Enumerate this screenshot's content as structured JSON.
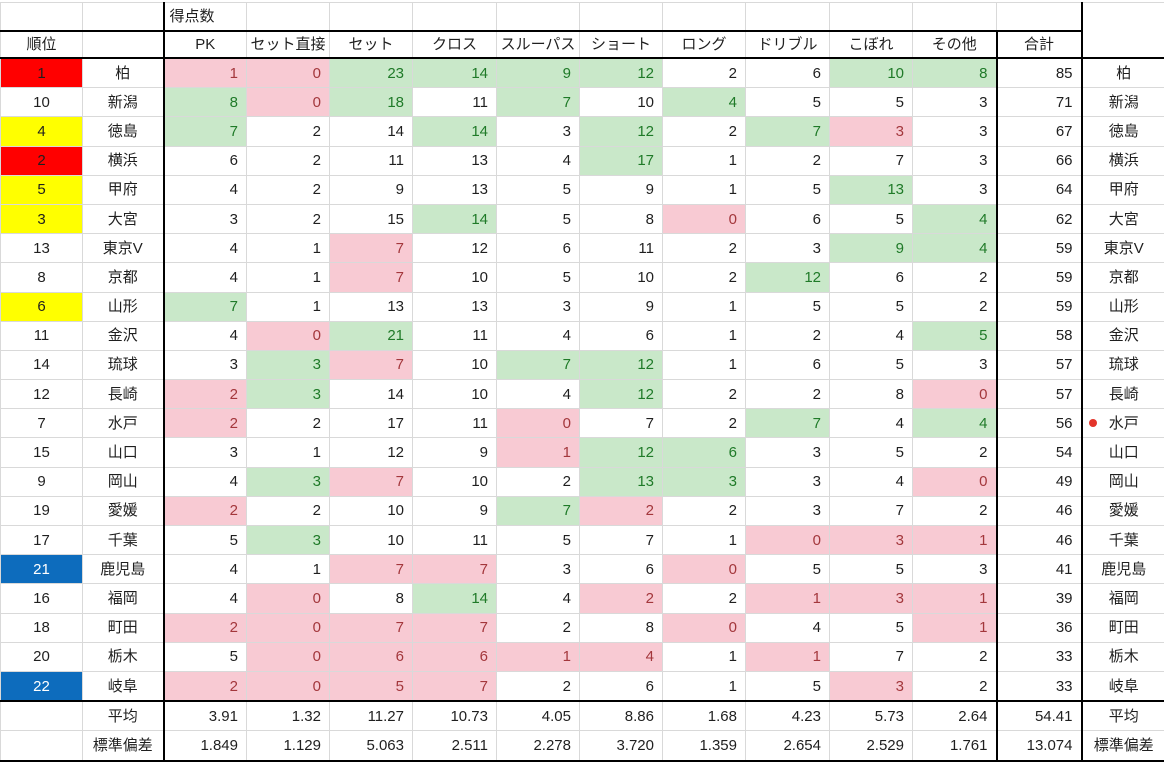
{
  "header": {
    "score_label": "得点数",
    "rank_label": "順位",
    "columns": [
      "PK",
      "セット直接",
      "セット",
      "クロス",
      "スルーパス",
      "ショート",
      "ロング",
      "ドリブル",
      "こぼれ",
      "その他",
      "合計"
    ]
  },
  "colors": {
    "rank_red": "#ff0000",
    "rank_yellow": "#ffff00",
    "rank_blue": "#0d6cbd",
    "good_bg": "#c9e8c9",
    "good_text": "#1f7a28",
    "bad_bg": "#f8cad3",
    "bad_text": "#a3373c",
    "dot": "#e3342a"
  },
  "rows": [
    {
      "rank": "1",
      "rank_color": "red",
      "team": "柏",
      "values": [
        1,
        0,
        23,
        14,
        9,
        12,
        2,
        6,
        10,
        8
      ],
      "styles": [
        "p",
        "p",
        "g",
        "g",
        "g",
        "g",
        "",
        "",
        "g",
        "g"
      ],
      "total": "85",
      "dot": false
    },
    {
      "rank": "10",
      "rank_color": "",
      "team": "新潟",
      "values": [
        8,
        0,
        18,
        11,
        7,
        10,
        4,
        5,
        5,
        3
      ],
      "styles": [
        "g",
        "p",
        "g",
        "",
        "g",
        "",
        "g",
        "",
        "",
        ""
      ],
      "total": "71",
      "dot": false
    },
    {
      "rank": "4",
      "rank_color": "yellow",
      "team": "徳島",
      "values": [
        7,
        2,
        14,
        14,
        3,
        12,
        2,
        7,
        3,
        3
      ],
      "styles": [
        "g",
        "",
        "",
        "g",
        "",
        "g",
        "",
        "g",
        "p",
        ""
      ],
      "total": "67",
      "dot": false
    },
    {
      "rank": "2",
      "rank_color": "red",
      "team": "横浜",
      "values": [
        6,
        2,
        11,
        13,
        4,
        17,
        1,
        2,
        7,
        3
      ],
      "styles": [
        "",
        "",
        "",
        "",
        "",
        "g",
        "",
        "",
        "",
        ""
      ],
      "total": "66",
      "dot": false
    },
    {
      "rank": "5",
      "rank_color": "yellow",
      "team": "甲府",
      "values": [
        4,
        2,
        9,
        13,
        5,
        9,
        1,
        5,
        13,
        3
      ],
      "styles": [
        "",
        "",
        "",
        "",
        "",
        "",
        "",
        "",
        "g",
        ""
      ],
      "total": "64",
      "dot": false
    },
    {
      "rank": "3",
      "rank_color": "yellow",
      "team": "大宮",
      "values": [
        3,
        2,
        15,
        14,
        5,
        8,
        0,
        6,
        5,
        4
      ],
      "styles": [
        "",
        "",
        "",
        "g",
        "",
        "",
        "p",
        "",
        "",
        "g"
      ],
      "total": "62",
      "dot": false
    },
    {
      "rank": "13",
      "rank_color": "",
      "team": "東京V",
      "values": [
        4,
        1,
        7,
        12,
        6,
        11,
        2,
        3,
        9,
        4
      ],
      "styles": [
        "",
        "",
        "p",
        "",
        "",
        "",
        "",
        "",
        "g",
        "g"
      ],
      "total": "59",
      "dot": false
    },
    {
      "rank": "8",
      "rank_color": "",
      "team": "京都",
      "values": [
        4,
        1,
        7,
        10,
        5,
        10,
        2,
        12,
        6,
        2
      ],
      "styles": [
        "",
        "",
        "p",
        "",
        "",
        "",
        "",
        "g",
        "",
        ""
      ],
      "total": "59",
      "dot": false
    },
    {
      "rank": "6",
      "rank_color": "yellow",
      "team": "山形",
      "values": [
        7,
        1,
        13,
        13,
        3,
        9,
        1,
        5,
        5,
        2
      ],
      "styles": [
        "g",
        "",
        "",
        "",
        "",
        "",
        "",
        "",
        "",
        ""
      ],
      "total": "59",
      "dot": false
    },
    {
      "rank": "11",
      "rank_color": "",
      "team": "金沢",
      "values": [
        4,
        0,
        21,
        11,
        4,
        6,
        1,
        2,
        4,
        5
      ],
      "styles": [
        "",
        "p",
        "g",
        "",
        "",
        "",
        "",
        "",
        "",
        "g"
      ],
      "total": "58",
      "dot": false
    },
    {
      "rank": "14",
      "rank_color": "",
      "team": "琉球",
      "values": [
        3,
        3,
        7,
        10,
        7,
        12,
        1,
        6,
        5,
        3
      ],
      "styles": [
        "",
        "g",
        "p",
        "",
        "g",
        "g",
        "",
        "",
        "",
        ""
      ],
      "total": "57",
      "dot": false
    },
    {
      "rank": "12",
      "rank_color": "",
      "team": "長崎",
      "values": [
        2,
        3,
        14,
        10,
        4,
        12,
        2,
        2,
        8,
        0
      ],
      "styles": [
        "p",
        "g",
        "",
        "",
        "",
        "g",
        "",
        "",
        "",
        "p"
      ],
      "total": "57",
      "dot": false
    },
    {
      "rank": "7",
      "rank_color": "",
      "team": "水戸",
      "values": [
        2,
        2,
        17,
        11,
        0,
        7,
        2,
        7,
        4,
        4
      ],
      "styles": [
        "p",
        "",
        "",
        "",
        "p",
        "",
        "",
        "g",
        "",
        "g"
      ],
      "total": "56",
      "dot": true
    },
    {
      "rank": "15",
      "rank_color": "",
      "team": "山口",
      "values": [
        3,
        1,
        12,
        9,
        1,
        12,
        6,
        3,
        5,
        2
      ],
      "styles": [
        "",
        "",
        "",
        "",
        "p",
        "g",
        "g",
        "",
        "",
        ""
      ],
      "total": "54",
      "dot": false
    },
    {
      "rank": "9",
      "rank_color": "",
      "team": "岡山",
      "values": [
        4,
        3,
        7,
        10,
        2,
        13,
        3,
        3,
        4,
        0
      ],
      "styles": [
        "",
        "g",
        "p",
        "",
        "",
        "g",
        "g",
        "",
        "",
        "p"
      ],
      "total": "49",
      "dot": false
    },
    {
      "rank": "19",
      "rank_color": "",
      "team": "愛媛",
      "values": [
        2,
        2,
        10,
        9,
        7,
        2,
        2,
        3,
        7,
        2
      ],
      "styles": [
        "p",
        "",
        "",
        "",
        "g",
        "p",
        "",
        "",
        "",
        ""
      ],
      "total": "46",
      "dot": false
    },
    {
      "rank": "17",
      "rank_color": "",
      "team": "千葉",
      "values": [
        5,
        3,
        10,
        11,
        5,
        7,
        1,
        0,
        3,
        1
      ],
      "styles": [
        "",
        "g",
        "",
        "",
        "",
        "",
        "",
        "p",
        "p",
        "p"
      ],
      "total": "46",
      "dot": false
    },
    {
      "rank": "21",
      "rank_color": "blue",
      "team": "鹿児島",
      "values": [
        4,
        1,
        7,
        7,
        3,
        6,
        0,
        5,
        5,
        3
      ],
      "styles": [
        "",
        "",
        "p",
        "p",
        "",
        "",
        "p",
        "",
        "",
        ""
      ],
      "total": "41",
      "dot": false
    },
    {
      "rank": "16",
      "rank_color": "",
      "team": "福岡",
      "values": [
        4,
        0,
        8,
        14,
        4,
        2,
        2,
        1,
        3,
        1
      ],
      "styles": [
        "",
        "p",
        "",
        "g",
        "",
        "p",
        "",
        "p",
        "p",
        "p"
      ],
      "total": "39",
      "dot": false
    },
    {
      "rank": "18",
      "rank_color": "",
      "team": "町田",
      "values": [
        2,
        0,
        7,
        7,
        2,
        8,
        0,
        4,
        5,
        1
      ],
      "styles": [
        "p",
        "p",
        "p",
        "p",
        "",
        "",
        "p",
        "",
        "",
        "p"
      ],
      "total": "36",
      "dot": false
    },
    {
      "rank": "20",
      "rank_color": "",
      "team": "栃木",
      "values": [
        5,
        0,
        6,
        6,
        1,
        4,
        1,
        1,
        7,
        2
      ],
      "styles": [
        "",
        "p",
        "p",
        "p",
        "p",
        "p",
        "",
        "p",
        "",
        ""
      ],
      "total": "33",
      "dot": false
    },
    {
      "rank": "22",
      "rank_color": "blue",
      "team": "岐阜",
      "values": [
        2,
        0,
        5,
        7,
        2,
        6,
        1,
        5,
        3,
        2
      ],
      "styles": [
        "p",
        "p",
        "p",
        "p",
        "",
        "",
        "",
        "",
        "p",
        ""
      ],
      "total": "33",
      "dot": false
    }
  ],
  "summary": [
    {
      "label": "平均",
      "values": [
        "3.91",
        "1.32",
        "11.27",
        "10.73",
        "4.05",
        "8.86",
        "1.68",
        "4.23",
        "5.73",
        "2.64"
      ],
      "total": "54.41"
    },
    {
      "label": "標準偏差",
      "values": [
        "1.849",
        "1.129",
        "5.063",
        "2.511",
        "2.278",
        "3.720",
        "1.359",
        "2.654",
        "2.529",
        "1.761"
      ],
      "total": "13.074"
    }
  ]
}
